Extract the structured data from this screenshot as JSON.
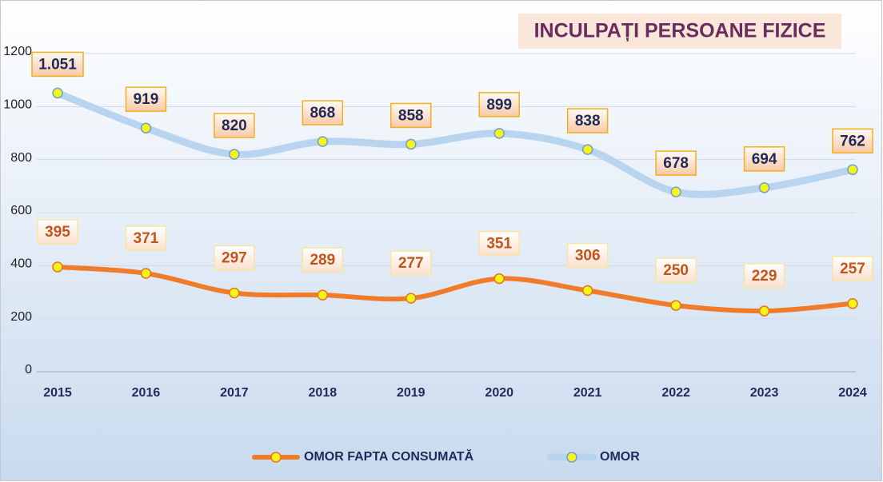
{
  "chart_data": {
    "type": "line",
    "title": "INCULPAȚI PERSOANE FIZICE",
    "categories": [
      "2015",
      "2016",
      "2017",
      "2018",
      "2019",
      "2020",
      "2021",
      "2022",
      "2023",
      "2024"
    ],
    "series": [
      {
        "name": "OMOR FAPTA CONSUMATĂ",
        "color": "#f07c2a",
        "values": [
          395,
          371,
          297,
          289,
          277,
          351,
          306,
          250,
          229,
          257
        ]
      },
      {
        "name": "OMOR",
        "color": "#b9d4ef",
        "values": [
          1051,
          919,
          820,
          868,
          858,
          899,
          838,
          678,
          694,
          762
        ],
        "value_labels": [
          "1.051",
          "919",
          "820",
          "868",
          "858",
          "899",
          "838",
          "678",
          "694",
          "762"
        ]
      }
    ],
    "ylim": [
      0,
      1200
    ],
    "yticks": [
      0,
      200,
      400,
      600,
      800,
      1000,
      1200
    ],
    "grid": true,
    "legend": "bottom"
  }
}
